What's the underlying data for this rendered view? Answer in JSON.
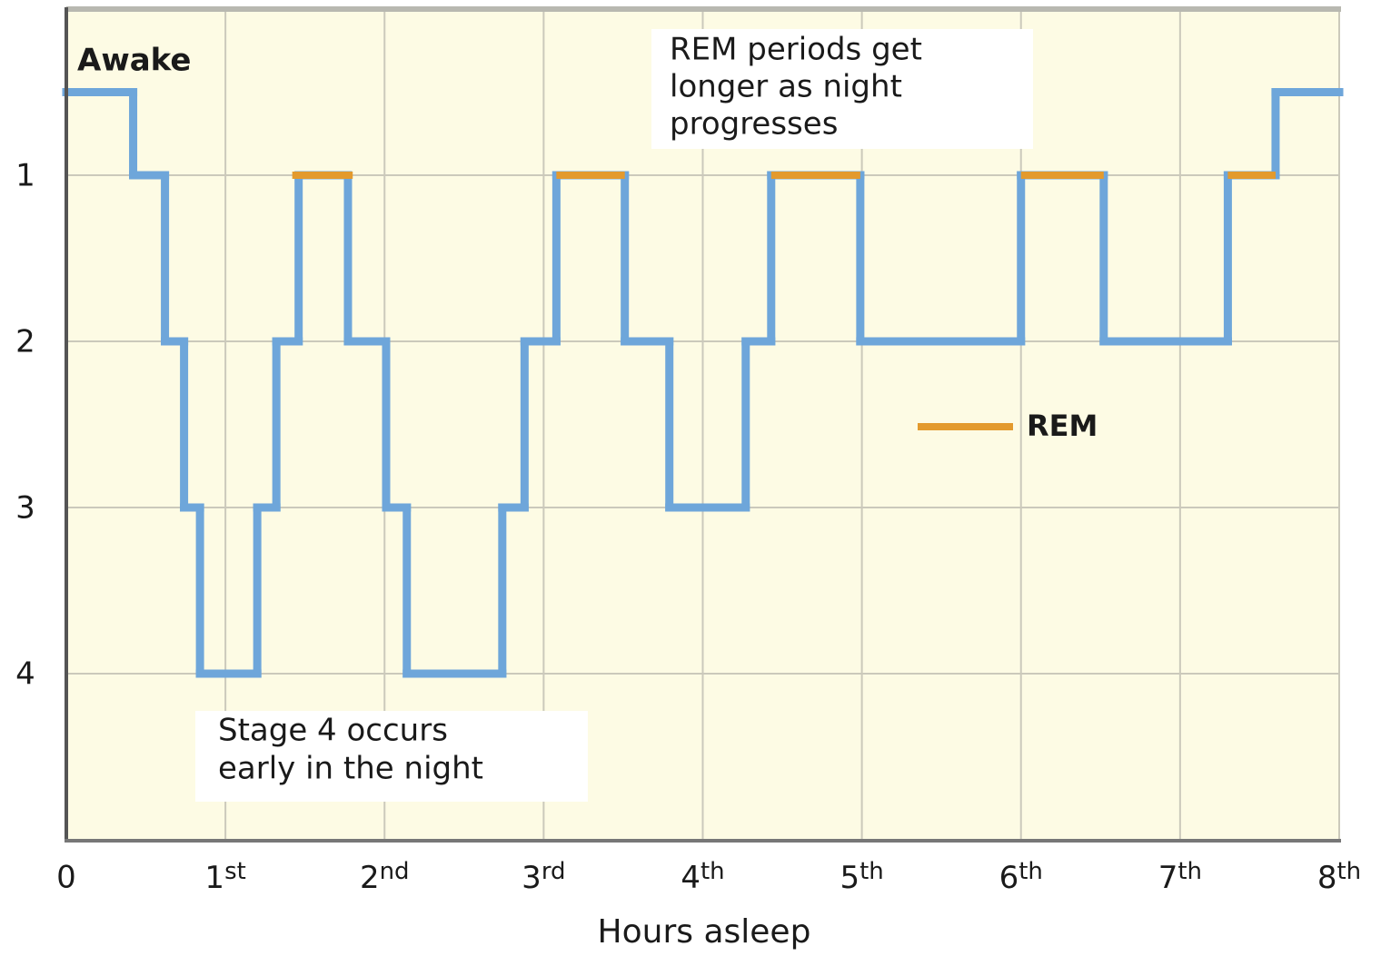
{
  "chart_data": {
    "type": "step-line",
    "x_label": "Hours asleep",
    "xlim": [
      0,
      8
    ],
    "xticks": [
      0,
      {
        "value": 1,
        "label": "1st"
      },
      {
        "value": 2,
        "label": "2nd"
      },
      {
        "value": 3,
        "label": "3rd"
      },
      {
        "value": 4,
        "label": "4th"
      },
      {
        "value": 5,
        "label": "5th"
      },
      {
        "value": 6,
        "label": "6th"
      },
      {
        "value": 7,
        "label": "7th"
      },
      {
        "value": 8,
        "label": "8th"
      }
    ],
    "ylim": [
      5,
      0
    ],
    "yticks": [
      1,
      2,
      3,
      4
    ],
    "grid": true,
    "series": [
      {
        "color": "#6ea6da",
        "x": [
          0,
          0.42,
          0.62,
          0.74,
          0.84,
          1.2,
          1.32,
          1.46,
          1.77,
          2.01,
          2.14,
          2.74,
          2.88,
          3.08,
          3.51,
          3.79,
          4.27,
          4.43,
          4.99,
          6.0,
          6.52,
          7.3,
          7.6,
          8
        ],
        "values": [
          0.5,
          1,
          2,
          3,
          4,
          3,
          2,
          1,
          2,
          3,
          4,
          3,
          2,
          1,
          2,
          3,
          2,
          1,
          2,
          1,
          2,
          1,
          0.5,
          0.5
        ]
      },
      {
        "name": "REM",
        "color": "#e39a2d",
        "x": [
          1.42,
          1.8,
          null,
          3.08,
          3.51,
          null,
          4.43,
          4.99,
          null,
          6.0,
          6.52,
          null,
          7.3,
          7.6
        ],
        "values": [
          1,
          1,
          null,
          1,
          1,
          null,
          1,
          1,
          null,
          1,
          1,
          null,
          1,
          1
        ]
      }
    ],
    "annotations": {
      "awake": "Awake",
      "rem_note": [
        "REM periods get",
        "longer as night",
        "progresses"
      ],
      "stage4_note": [
        "Stage 4 occurs",
        "early in the night"
      ]
    }
  }
}
